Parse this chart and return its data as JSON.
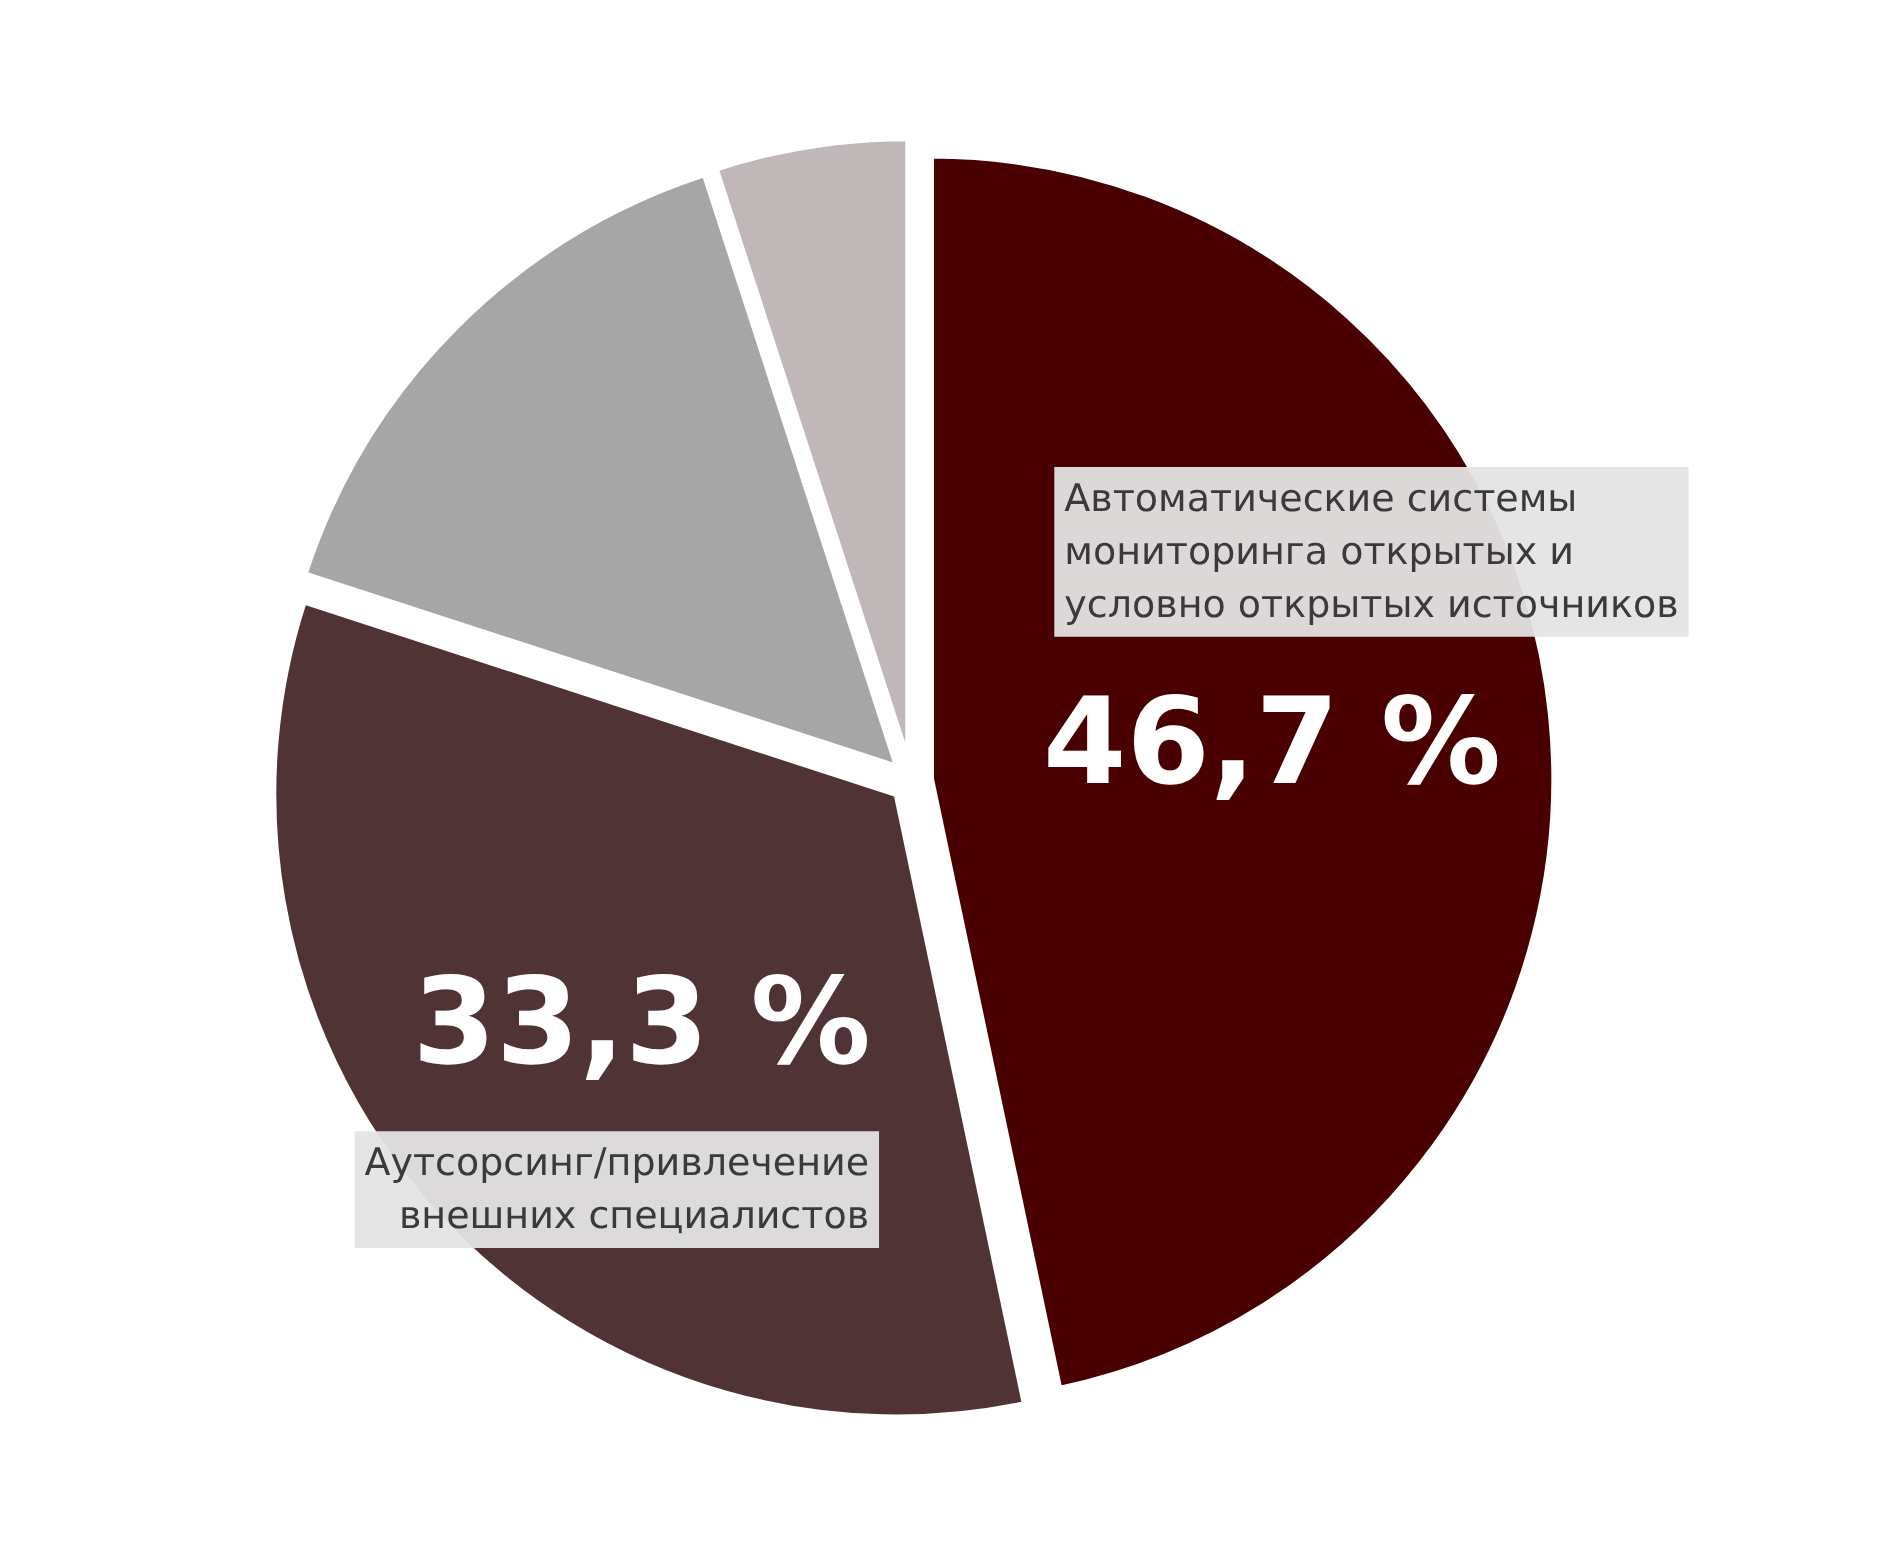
{
  "chart_data": {
    "type": "pie",
    "categories": [
      "Автоматические системы\nмониторинга открытых и\nусловно открытых источников",
      "Аутсорсинг/привлечение\nвнешних специалистов",
      null,
      null
    ],
    "values": [
      46.7,
      33.3,
      15,
      5
    ],
    "colors": [
      "#4a0000",
      "#4f3335",
      "#a6a6a6",
      "#c0b8b8"
    ],
    "value_labels": [
      "46,7 %",
      "33,3 %",
      null,
      null
    ]
  }
}
